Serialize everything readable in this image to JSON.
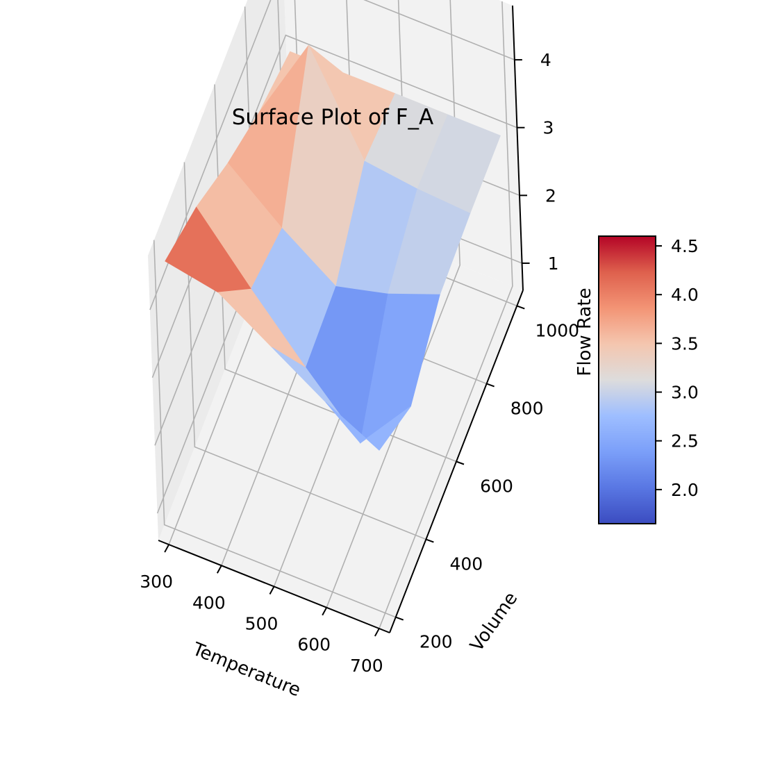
{
  "chart_data": {
    "type": "surface",
    "title": "Surface Plot of F_A",
    "xlabel": "Temperature",
    "ylabel": "Volume",
    "zlabel": "",
    "x": [
      300,
      400,
      500,
      600,
      700
    ],
    "y": [
      200,
      400,
      600,
      800,
      1000
    ],
    "xticks": [
      "300",
      "400",
      "500",
      "600",
      "700"
    ],
    "yticks": [
      "200",
      "400",
      "600",
      "800",
      "1000"
    ],
    "zticks": [
      "1",
      "2",
      "3",
      "4"
    ],
    "z": [
      [
        4.55,
        4.4,
        3.9,
        3.4,
        3.0
      ],
      [
        4.2,
        3.3,
        2.45,
        1.65,
        2.5
      ],
      [
        3.7,
        3.05,
        2.5,
        2.7,
        3.0
      ],
      [
        3.3,
        4.6,
        3.2,
        3.1,
        3.05
      ],
      [
        3.05,
        3.05,
        3.05,
        3.05,
        3.05
      ]
    ],
    "zlim": [
      0.6,
      4.8
    ],
    "colormap": "coolwarm",
    "colorbar": {
      "label": "Flow Rate",
      "range": [
        1.65,
        4.6
      ],
      "ticks": [
        "2.0",
        "2.5",
        "3.0",
        "3.5",
        "4.0",
        "4.5"
      ],
      "tick_values": [
        2.0,
        2.5,
        3.0,
        3.5,
        4.0,
        4.5
      ]
    },
    "grid": true
  }
}
